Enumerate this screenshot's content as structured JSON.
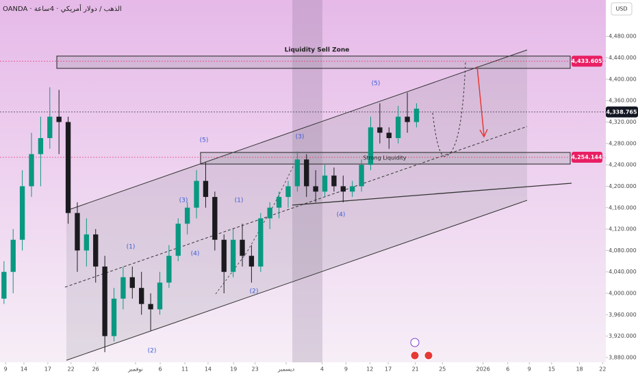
{
  "chart_data": {
    "type": "candlestick",
    "symbol": "OANDA · الذهب / دولار أمريكي · 4ساعة",
    "currency": "USD",
    "up_color": "#089981",
    "down_color": "#1b1b1f",
    "xlim": [
      0,
      76
    ],
    "ylim": [
      3871,
      4548
    ],
    "x": [
      0.5,
      1.65,
      2.8,
      3.95,
      5.1,
      6.25,
      7.4,
      8.55,
      9.7,
      10.85,
      12,
      13.15,
      14.3,
      15.45,
      16.6,
      17.75,
      18.9,
      20.05,
      21.2,
      22.35,
      23.5,
      24.65,
      25.8,
      26.95,
      28.1,
      29.25,
      30.4,
      31.55,
      32.7,
      33.85,
      35,
      36.15,
      37.3,
      38.45,
      39.6,
      40.75,
      41.9,
      43.05,
      44.2,
      45.35,
      46.5,
      47.65,
      48.8,
      49.95,
      51.1,
      52.25
    ],
    "ohlc": [
      [
        3990,
        4060,
        3980,
        4040
      ],
      [
        4040,
        4120,
        4000,
        4100
      ],
      [
        4100,
        4230,
        4080,
        4200
      ],
      [
        4200,
        4300,
        4180,
        4260
      ],
      [
        4260,
        4330,
        4200,
        4290
      ],
      [
        4290,
        4385,
        4270,
        4330
      ],
      [
        4330,
        4380,
        4260,
        4320
      ],
      [
        4320,
        4330,
        4130,
        4150
      ],
      [
        4150,
        4170,
        4040,
        4080
      ],
      [
        4080,
        4140,
        4050,
        4110
      ],
      [
        4110,
        4120,
        4020,
        4050
      ],
      [
        4050,
        4070,
        3890,
        3920
      ],
      [
        3920,
        4010,
        3910,
        3990
      ],
      [
        3990,
        4050,
        3970,
        4030
      ],
      [
        4030,
        4050,
        3990,
        4010
      ],
      [
        4010,
        4040,
        3960,
        3980
      ],
      [
        3980,
        4000,
        3930,
        3970
      ],
      [
        3970,
        4040,
        3960,
        4020
      ],
      [
        4020,
        4090,
        4010,
        4070
      ],
      [
        4070,
        4140,
        4060,
        4130
      ],
      [
        4130,
        4170,
        4110,
        4160
      ],
      [
        4160,
        4230,
        4140,
        4210
      ],
      [
        4210,
        4245,
        4160,
        4180
      ],
      [
        4180,
        4190,
        4080,
        4100
      ],
      [
        4100,
        4110,
        4000,
        4040
      ],
      [
        4040,
        4120,
        4030,
        4100
      ],
      [
        4100,
        4130,
        4050,
        4070
      ],
      [
        4070,
        4090,
        4020,
        4050
      ],
      [
        4050,
        4150,
        4040,
        4140
      ],
      [
        4140,
        4170,
        4120,
        4160
      ],
      [
        4160,
        4190,
        4140,
        4180
      ],
      [
        4180,
        4210,
        4160,
        4200
      ],
      [
        4200,
        4265,
        4190,
        4250
      ],
      [
        4250,
        4260,
        4180,
        4200
      ],
      [
        4200,
        4230,
        4170,
        4190
      ],
      [
        4190,
        4240,
        4180,
        4220
      ],
      [
        4220,
        4235,
        4190,
        4200
      ],
      [
        4200,
        4220,
        4170,
        4190
      ],
      [
        4190,
        4210,
        4180,
        4200
      ],
      [
        4200,
        4250,
        4190,
        4240
      ],
      [
        4240,
        4330,
        4230,
        4310
      ],
      [
        4310,
        4355,
        4280,
        4300
      ],
      [
        4300,
        4310,
        4270,
        4290
      ],
      [
        4290,
        4350,
        4280,
        4330
      ],
      [
        4330,
        4375,
        4300,
        4320
      ],
      [
        4320,
        4355,
        4310,
        4345
      ]
    ],
    "yticks": [
      {
        "value": 3880,
        "label": "3,880.000"
      },
      {
        "value": 3920,
        "label": "3,920.000"
      },
      {
        "value": 3960,
        "label": "3,960.000"
      },
      {
        "value": 4000,
        "label": "4,000.000"
      },
      {
        "value": 4040,
        "label": "4,040.000"
      },
      {
        "value": 4080,
        "label": "4,080.000"
      },
      {
        "value": 4120,
        "label": "4,120.000"
      },
      {
        "value": 4160,
        "label": "4,160.000"
      },
      {
        "value": 4200,
        "label": "4,200.000"
      },
      {
        "value": 4240,
        "label": "4,240.000"
      },
      {
        "value": 4280,
        "label": "4,280.000"
      },
      {
        "value": 4320,
        "label": "4,320.000"
      },
      {
        "value": 4360,
        "label": "4,360.000"
      },
      {
        "value": 4400,
        "label": "4,400.000"
      },
      {
        "value": 4440,
        "label": "4,440.000"
      },
      {
        "value": 4480,
        "label": "4,480.000"
      }
    ],
    "xticks": [
      {
        "value": 0.7,
        "label": "9"
      },
      {
        "value": 3,
        "label": "14"
      },
      {
        "value": 6,
        "label": "17"
      },
      {
        "value": 8.9,
        "label": "22"
      },
      {
        "value": 12,
        "label": "26"
      },
      {
        "value": 17,
        "label": "نوفمبر"
      },
      {
        "value": 20.1,
        "label": "6"
      },
      {
        "value": 23.2,
        "label": "11"
      },
      {
        "value": 26.1,
        "label": "14"
      },
      {
        "value": 29.3,
        "label": "19"
      },
      {
        "value": 32,
        "label": "23"
      },
      {
        "value": 35.9,
        "label": "ديسمبر"
      },
      {
        "value": 40.4,
        "label": "4"
      },
      {
        "value": 43.4,
        "label": "9"
      },
      {
        "value": 46.4,
        "label": "12"
      },
      {
        "value": 48.7,
        "label": "17"
      },
      {
        "value": 52.1,
        "label": "21"
      },
      {
        "value": 55.5,
        "label": "25"
      },
      {
        "value": 60.6,
        "label": "2026"
      },
      {
        "value": 63.7,
        "label": "6"
      },
      {
        "value": 66.4,
        "label": "9"
      },
      {
        "value": 69.2,
        "label": "15"
      },
      {
        "value": 72.7,
        "label": "18"
      },
      {
        "value": 75.6,
        "label": "22"
      }
    ],
    "levels": [
      {
        "value": 4433.605,
        "label": "4,433.605",
        "color": "#e91e63"
      },
      {
        "value": 4338.765,
        "label": "4,338.765",
        "color": "#131722"
      },
      {
        "value": 4254.144,
        "label": "4,254.144",
        "color": "#e91e63"
      }
    ],
    "annotations": [
      "Liquidity  Sell Zone",
      "Strong Liquidity",
      "(5)",
      "(3)",
      "(1)",
      "(4)",
      "(2)",
      "(1)",
      "(3)",
      "(2)",
      "(4)",
      "(5)"
    ]
  }
}
